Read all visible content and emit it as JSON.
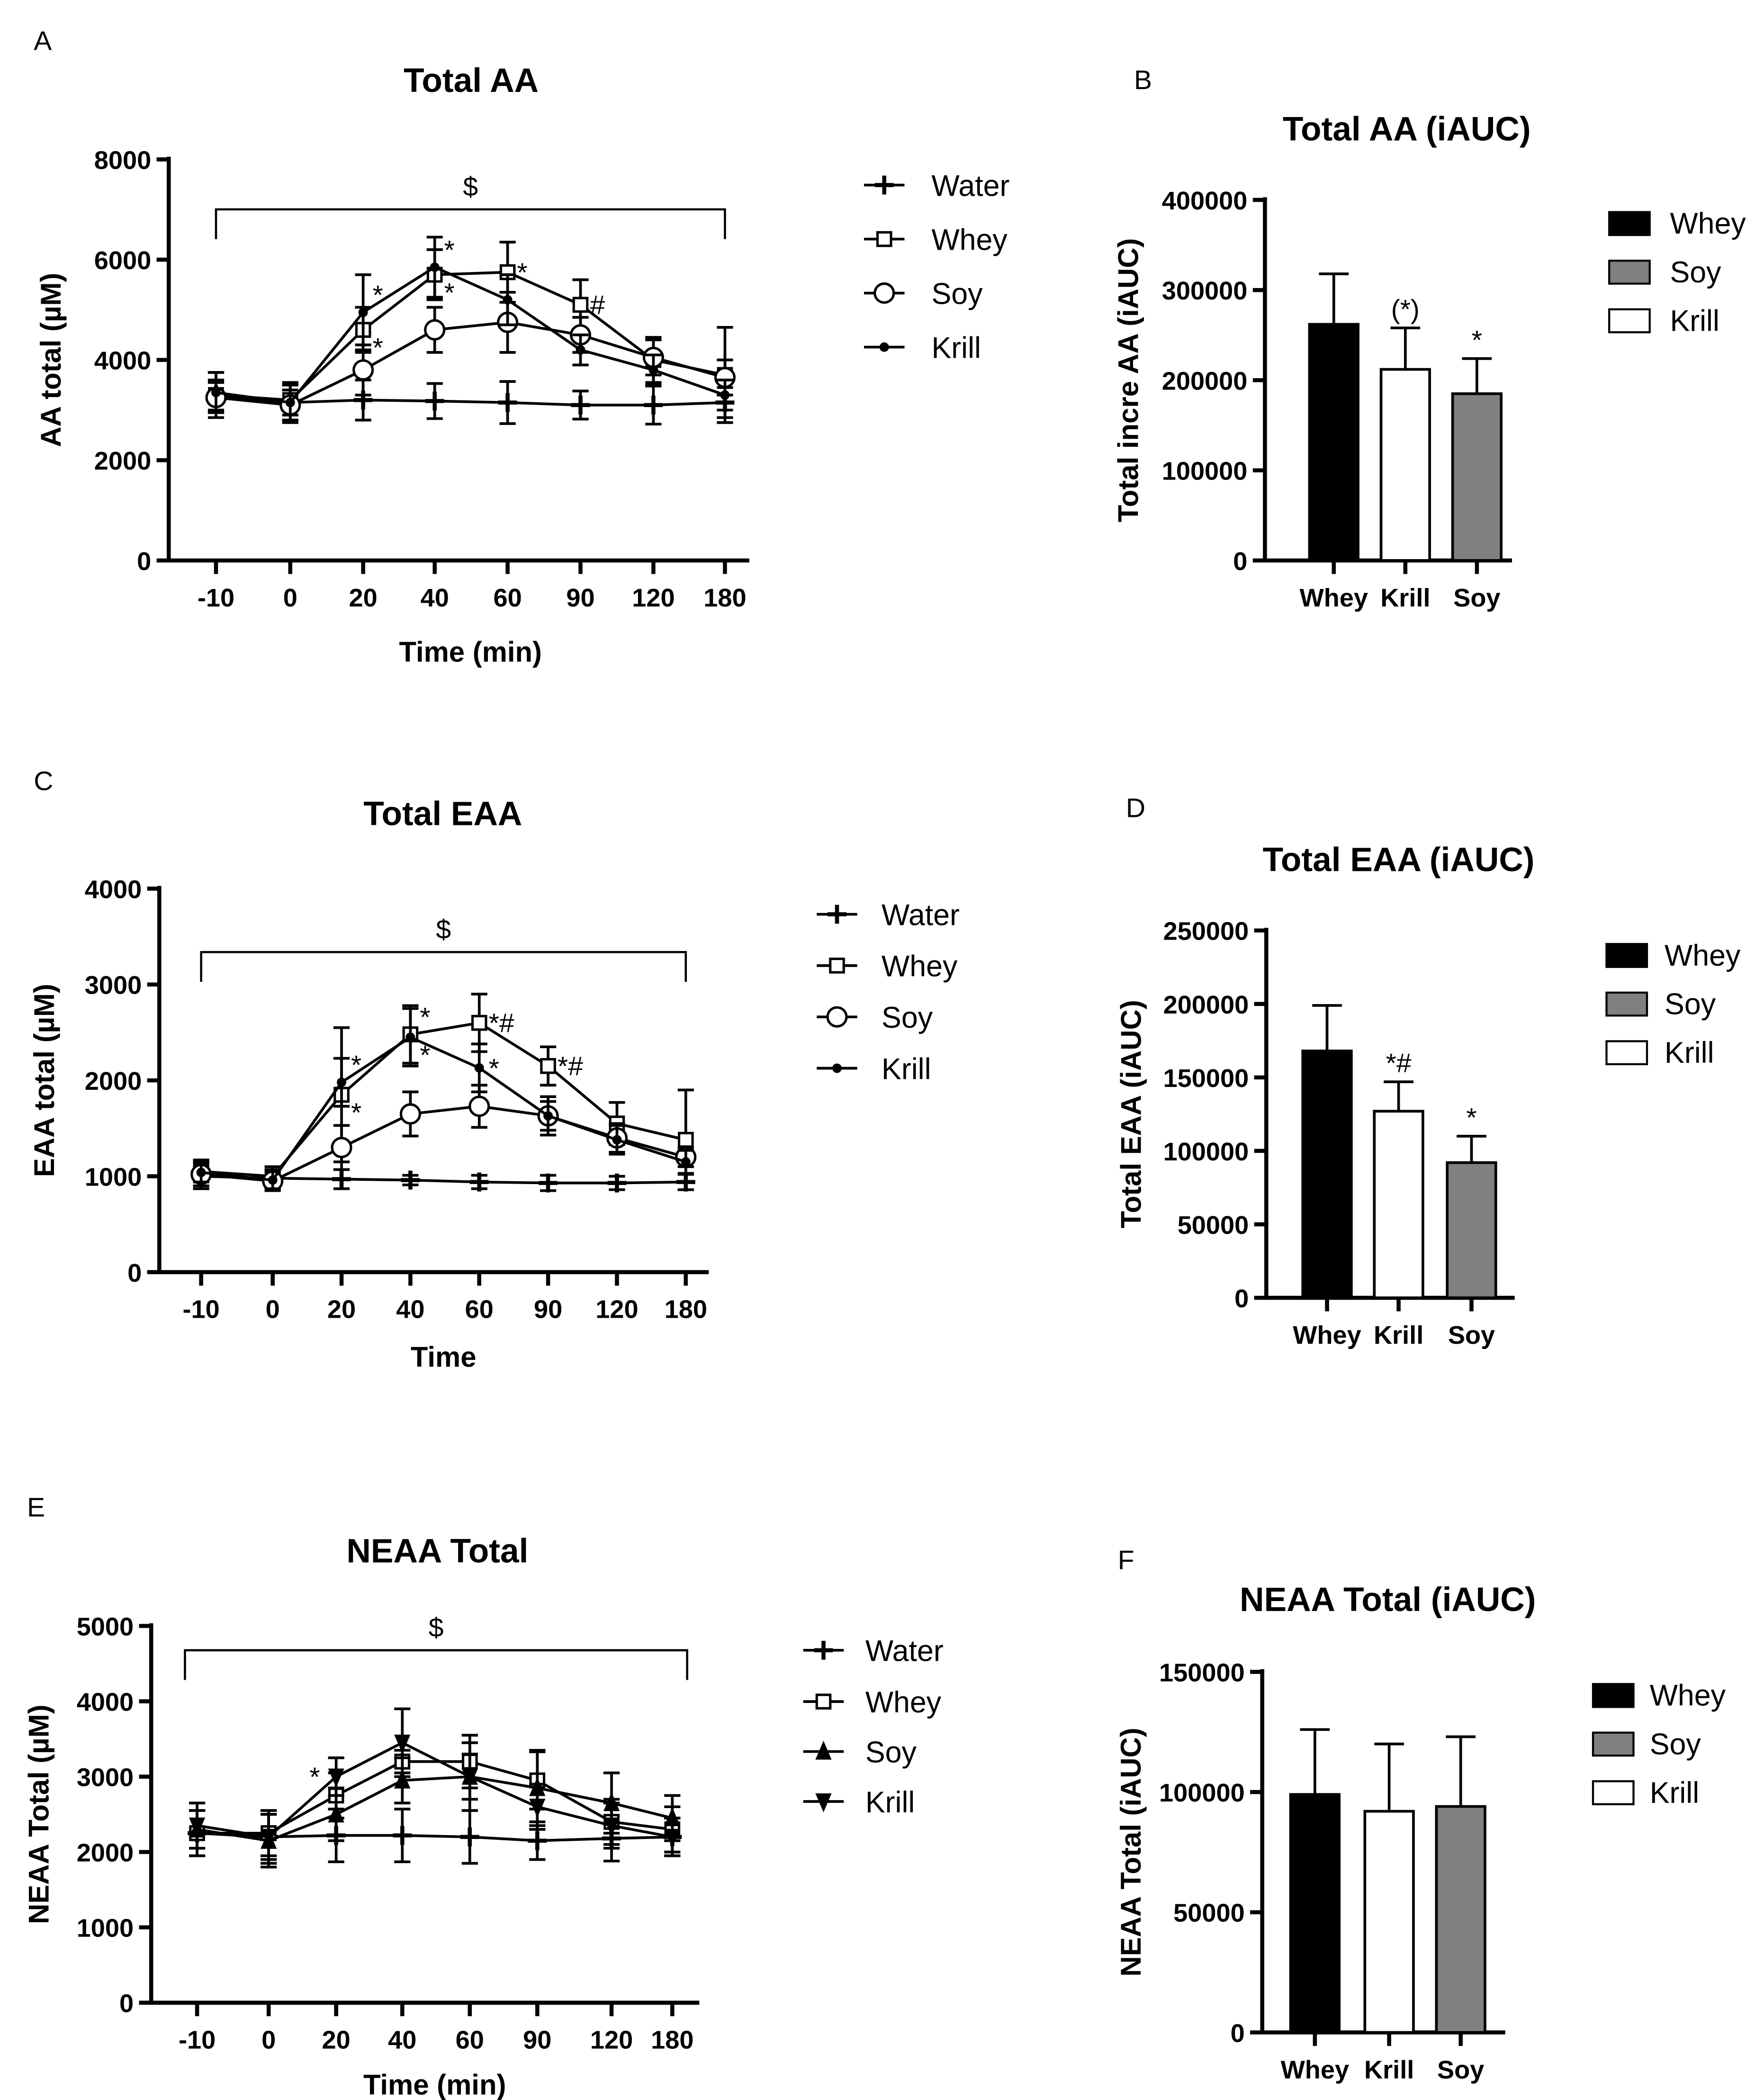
{
  "chart_data": [
    {
      "panel": "A",
      "type": "line",
      "title": "Total AA",
      "xlabel": "Time  (min)",
      "ylabel": "AA total (µM)",
      "categories": [
        "-10",
        "0",
        "20",
        "40",
        "60",
        "90",
        "120",
        "180"
      ],
      "ylim": [
        0,
        8000
      ],
      "yticks": [
        0,
        2000,
        4000,
        6000,
        8000
      ],
      "bracket_label": "$",
      "series": [
        {
          "name": "Water",
          "marker": "plus",
          "values": [
            3300,
            3150,
            3200,
            3180,
            3150,
            3100,
            3100,
            3150
          ],
          "sd": [
            450,
            400,
            400,
            350,
            420,
            280,
            380,
            300
          ]
        },
        {
          "name": "Whey",
          "marker": "open-square",
          "values": [
            3300,
            3200,
            4600,
            5700,
            5750,
            5100,
            4000,
            3700
          ],
          "sd": [
            300,
            300,
            450,
            500,
            600,
            500,
            450,
            950
          ]
        },
        {
          "name": "Soy",
          "marker": "open-circle",
          "values": [
            3250,
            3100,
            3800,
            4600,
            4750,
            4500,
            4050,
            3650
          ],
          "sd": [
            300,
            300,
            500,
            450,
            600,
            350,
            350,
            350
          ]
        },
        {
          "name": "Krill",
          "marker": "dot",
          "values": [
            3350,
            3150,
            4950,
            5850,
            5200,
            4200,
            3800,
            3300
          ],
          "sd": [
            400,
            350,
            750,
            600,
            500,
            300,
            300,
            300
          ]
        }
      ],
      "annotations": [
        {
          "series": "Krill",
          "index": 2,
          "text": "*"
        },
        {
          "series": "Whey",
          "index": 2,
          "text": "*"
        },
        {
          "series": "Krill",
          "index": 3,
          "text": "*"
        },
        {
          "series": "Whey",
          "index": 3,
          "text": "*"
        },
        {
          "series": "Whey",
          "index": 4,
          "text": "*"
        },
        {
          "series": "Whey",
          "index": 5,
          "text": "#"
        }
      ]
    },
    {
      "panel": "B",
      "type": "bar",
      "title": "Total AA (iAUC)",
      "xlabel": "",
      "ylabel": "Total incre AA  (iAUC)",
      "categories": [
        "Whey",
        "Krill",
        "Soy"
      ],
      "values": [
        262000,
        212000,
        185000
      ],
      "error_upper": [
        318000,
        258000,
        224000
      ],
      "ylim": [
        0,
        400000
      ],
      "yticks": [
        0,
        100000,
        200000,
        300000,
        400000
      ],
      "annotations": [
        "",
        "(*)",
        "*"
      ],
      "legend": [
        "Whey",
        "Soy",
        "Krill"
      ]
    },
    {
      "panel": "C",
      "type": "line",
      "title": "Total EAA",
      "xlabel": "Time",
      "ylabel": "EAA total (µM)",
      "categories": [
        "-10",
        "0",
        "20",
        "40",
        "60",
        "90",
        "120",
        "180"
      ],
      "ylim": [
        0,
        4000
      ],
      "yticks": [
        0,
        1000,
        2000,
        3000,
        4000
      ],
      "bracket_label": "$",
      "series": [
        {
          "name": "Water",
          "marker": "plus",
          "values": [
            1000,
            980,
            970,
            960,
            940,
            930,
            930,
            940
          ],
          "sd": [
            100,
            90,
            100,
            50,
            70,
            80,
            70,
            80
          ]
        },
        {
          "name": "Whey",
          "marker": "open-square",
          "values": [
            1050,
            1000,
            1850,
            2480,
            2600,
            2150,
            1550,
            1380
          ],
          "sd": [
            100,
            100,
            700,
            300,
            300,
            200,
            220,
            520
          ]
        },
        {
          "name": "Soy",
          "marker": "open-circle",
          "values": [
            1020,
            950,
            1300,
            1650,
            1730,
            1630,
            1400,
            1200
          ],
          "sd": [
            150,
            100,
            230,
            230,
            220,
            200,
            150,
            100
          ]
        },
        {
          "name": "Krill",
          "marker": "dot",
          "values": [
            1040,
            960,
            1980,
            2450,
            2130,
            1630,
            1380,
            1150
          ],
          "sd": [
            100,
            90,
            250,
            300,
            250,
            150,
            150,
            120
          ]
        }
      ],
      "annotations": [
        {
          "series": "Krill",
          "index": 2,
          "text": "*"
        },
        {
          "series": "Whey",
          "index": 2,
          "text": "*"
        },
        {
          "series": "Whey",
          "index": 3,
          "text": "*"
        },
        {
          "series": "Krill",
          "index": 3,
          "text": "*"
        },
        {
          "series": "Whey",
          "index": 4,
          "text": "*#"
        },
        {
          "series": "Krill",
          "index": 4,
          "text": "*"
        },
        {
          "series": "Whey",
          "index": 5,
          "text": "*#"
        }
      ]
    },
    {
      "panel": "D",
      "type": "bar",
      "title": "Total EAA (iAUC)",
      "xlabel": "",
      "ylabel": "Total EAA  (iAUC)",
      "categories": [
        "Whey",
        "Krill",
        "Soy"
      ],
      "values": [
        168000,
        127000,
        92000
      ],
      "error_upper": [
        199000,
        147000,
        110000
      ],
      "ylim": [
        0,
        250000
      ],
      "yticks": [
        0,
        50000,
        100000,
        150000,
        200000,
        250000
      ],
      "annotations": [
        "",
        "*#",
        "*"
      ],
      "legend": [
        "Whey",
        "Soy",
        "Krill"
      ]
    },
    {
      "panel": "E",
      "type": "line",
      "title": "NEAA  Total",
      "xlabel": "Time (min)",
      "ylabel": "NEAA Total (µM)",
      "categories": [
        "-10",
        "0",
        "20",
        "40",
        "60",
        "90",
        "120",
        "180"
      ],
      "ylim": [
        0,
        5000
      ],
      "yticks": [
        0,
        1000,
        2000,
        3000,
        4000,
        5000
      ],
      "bracket_label": "$",
      "series": [
        {
          "name": "Water",
          "marker": "plus",
          "values": [
            2250,
            2200,
            2220,
            2220,
            2200,
            2150,
            2180,
            2200
          ],
          "sd": [
            300,
            350,
            350,
            350,
            350,
            250,
            300,
            250
          ]
        },
        {
          "name": "Whey",
          "marker": "open-square",
          "values": [
            2250,
            2250,
            2750,
            3200,
            3200,
            2950,
            2400,
            2300
          ],
          "sd": [
            300,
            300,
            300,
            150,
            350,
            380,
            300,
            300
          ]
        },
        {
          "name": "Soy",
          "marker": "filled-triangle",
          "values": [
            2300,
            2150,
            2500,
            2950,
            3000,
            2850,
            2650,
            2450
          ],
          "sd": [
            250,
            350,
            350,
            300,
            450,
            500,
            400,
            300
          ]
        },
        {
          "name": "Krill",
          "marker": "filled-inverted-triangle",
          "values": [
            2350,
            2200,
            3000,
            3450,
            3000,
            2600,
            2350,
            2200
          ],
          "sd": [
            300,
            300,
            250,
            450,
            300,
            300,
            300,
            250
          ]
        }
      ],
      "annotations": [
        {
          "series": "Krill",
          "index": 2,
          "text": "*",
          "side": "left"
        }
      ]
    },
    {
      "panel": "F",
      "type": "bar",
      "title": "NEAA Total (iAUC)",
      "xlabel": "",
      "ylabel": "NEAA Total (iAUC)",
      "categories": [
        "Whey",
        "Krill",
        "Soy"
      ],
      "values": [
        99000,
        92000,
        94000
      ],
      "error_upper": [
        126000,
        120000,
        123000
      ],
      "ylim": [
        0,
        150000
      ],
      "yticks": [
        0,
        50000,
        100000,
        150000
      ],
      "annotations": [
        "",
        "",
        ""
      ],
      "legend": [
        "Whey",
        "Soy",
        "Krill"
      ]
    }
  ],
  "colors": {
    "Whey": "#000000",
    "Soy": "#808080",
    "Krill": "#ffffff",
    "line": "#000000"
  }
}
